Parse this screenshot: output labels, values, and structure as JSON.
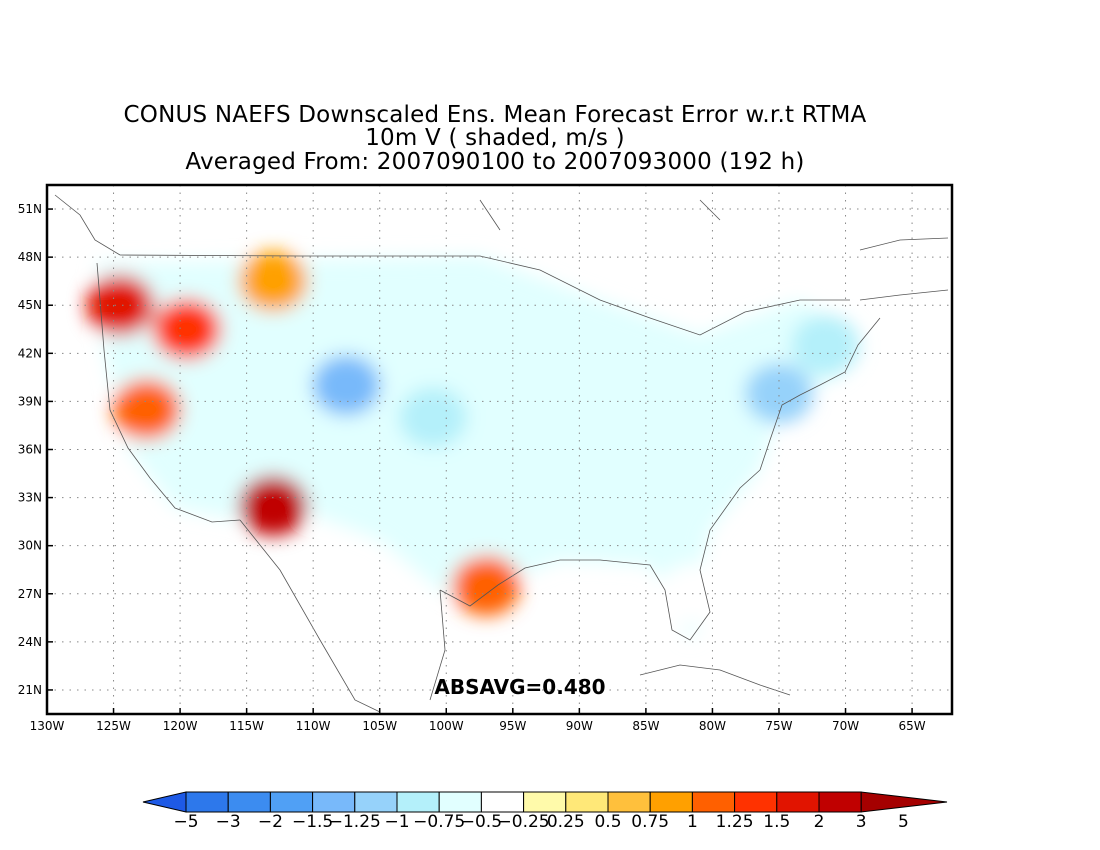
{
  "title": {
    "line1": "CONUS NAEFS Downscaled Ens. Mean Forecast Error w.r.t RTMA",
    "line2": "10m V ( shaded, m/s )",
    "line3": "Averaged From: 2007090100 to 2007093000 (192 h)"
  },
  "annotation": "ABSAVG=0.480",
  "map": {
    "lon_range": [
      -130,
      -62
    ],
    "lat_range": [
      19.5,
      52.5
    ],
    "lat_ticks": [
      {
        "value": 51,
        "label": "51N"
      },
      {
        "value": 48,
        "label": "48N"
      },
      {
        "value": 45,
        "label": "45N"
      },
      {
        "value": 42,
        "label": "42N"
      },
      {
        "value": 39,
        "label": "39N"
      },
      {
        "value": 36,
        "label": "36N"
      },
      {
        "value": 33,
        "label": "33N"
      },
      {
        "value": 30,
        "label": "30N"
      },
      {
        "value": 27,
        "label": "27N"
      },
      {
        "value": 24,
        "label": "24N"
      },
      {
        "value": 21,
        "label": "21N"
      }
    ],
    "lon_ticks": [
      {
        "value": -130,
        "label": "130W"
      },
      {
        "value": -125,
        "label": "125W"
      },
      {
        "value": -120,
        "label": "120W"
      },
      {
        "value": -115,
        "label": "115W"
      },
      {
        "value": -110,
        "label": "110W"
      },
      {
        "value": -105,
        "label": "105W"
      },
      {
        "value": -100,
        "label": "100W"
      },
      {
        "value": -95,
        "label": "95W"
      },
      {
        "value": -90,
        "label": "90W"
      },
      {
        "value": -85,
        "label": "85W"
      },
      {
        "value": -80,
        "label": "80W"
      },
      {
        "value": -75,
        "label": "75W"
      },
      {
        "value": -70,
        "label": "70W"
      },
      {
        "value": -65,
        "label": "65W"
      }
    ],
    "grid": "dotted",
    "field_regions": [
      {
        "name": "pacific-northwest-coast",
        "lon": -124.5,
        "lat": 45.0,
        "value": 1.5
      },
      {
        "name": "oregon-interior",
        "lon": -119.5,
        "lat": 43.5,
        "value": 1.25
      },
      {
        "name": "northern-rockies",
        "lon": -113.0,
        "lat": 46.5,
        "value": 0.75
      },
      {
        "name": "california-coast",
        "lon": -122.5,
        "lat": 38.5,
        "value": 1.0
      },
      {
        "name": "southwest-arizona",
        "lon": -113.0,
        "lat": 32.5,
        "value": 2.0
      },
      {
        "name": "south-texas-coast",
        "lon": -97.0,
        "lat": 27.5,
        "value": 1.0
      },
      {
        "name": "colorado-wyoming",
        "lon": -107.5,
        "lat": 40.0,
        "value": -1.5
      },
      {
        "name": "central-plains",
        "lon": -101.0,
        "lat": 38.0,
        "value": -1.0
      },
      {
        "name": "ozarks",
        "lon": -91.0,
        "lat": 36.0,
        "value": -0.75
      },
      {
        "name": "ohio-valley",
        "lon": -85.0,
        "lat": 38.0,
        "value": -0.75
      },
      {
        "name": "mid-atlantic-coast",
        "lon": -75.0,
        "lat": 39.5,
        "value": -1.25
      },
      {
        "name": "new-england",
        "lon": -71.5,
        "lat": 42.5,
        "value": -1.0
      },
      {
        "name": "florida",
        "lon": -81.5,
        "lat": 27.0,
        "value": -0.5
      },
      {
        "name": "east-texas",
        "lon": -98.5,
        "lat": 31.0,
        "value": -0.75
      }
    ]
  },
  "colorbar": {
    "colors": [
      "#1e5ae6",
      "#2d78eb",
      "#3c8cf0",
      "#50a0f5",
      "#78b9fa",
      "#96d2fa",
      "#b4f0fa",
      "#e1ffff",
      "#ffffff",
      "#fffaaa",
      "#ffe878",
      "#ffc03c",
      "#ffa000",
      "#ff6000",
      "#ff3200",
      "#e11400",
      "#c00000",
      "#a50000"
    ],
    "labels": [
      "−5",
      "−3",
      "−2",
      "−1.5",
      "−1.25",
      "−1",
      "−0.75",
      "−0.5",
      "−0.25",
      "0.25",
      "0.5",
      "0.75",
      "1",
      "1.25",
      "1.5",
      "2",
      "3",
      "5"
    ]
  }
}
